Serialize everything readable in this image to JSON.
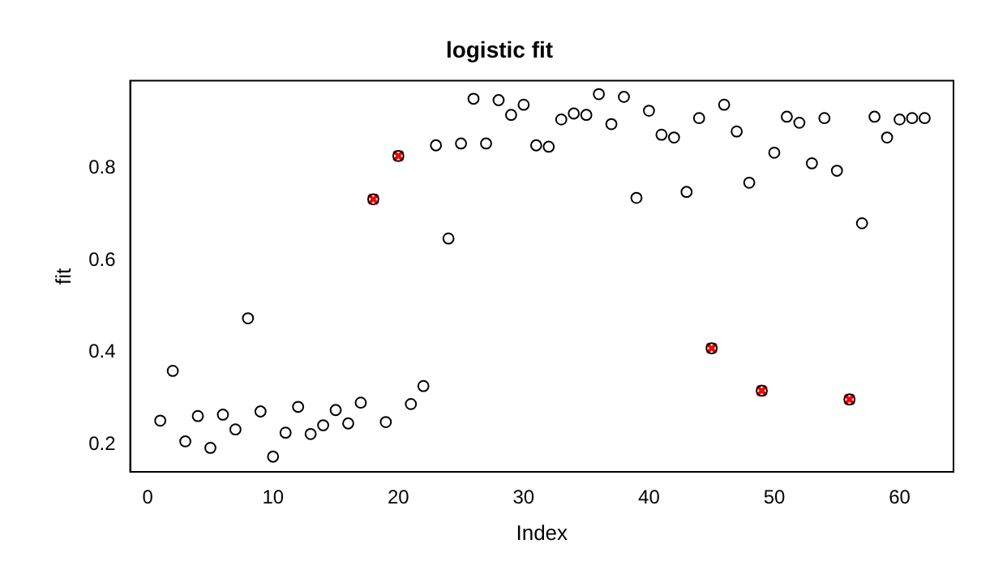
{
  "chart_data": {
    "type": "scatter",
    "title": "logistic fit",
    "xlabel": "Index",
    "ylabel": "fit",
    "xlim": [
      -1.4,
      64.3
    ],
    "xticks": [
      0,
      10,
      20,
      30,
      40,
      50,
      60
    ],
    "ylim": [
      0.141,
      0.989
    ],
    "yticks": [
      0.2,
      0.4,
      0.6,
      0.8
    ],
    "grid": false,
    "legend": false,
    "series": [
      {
        "color": "#000000",
        "marker": "circle",
        "x": [
          1,
          2,
          3,
          4,
          5,
          6,
          7,
          8,
          9,
          10,
          11,
          12,
          13,
          14,
          15,
          16,
          17,
          18,
          19,
          20,
          21,
          22,
          23,
          24,
          25,
          26,
          27,
          28,
          29,
          30,
          31,
          32,
          33,
          34,
          35,
          36,
          37,
          38,
          39,
          40,
          41,
          42,
          43,
          44,
          45,
          46,
          47,
          48,
          49,
          50,
          51,
          52,
          53,
          54,
          55,
          56,
          57,
          58,
          59,
          60,
          61,
          62
        ],
        "values": [
          0.252,
          0.36,
          0.207,
          0.262,
          0.193,
          0.265,
          0.233,
          0.474,
          0.272,
          0.174,
          0.226,
          0.282,
          0.223,
          0.242,
          0.275,
          0.246,
          0.291,
          0.732,
          0.249,
          0.826,
          0.288,
          0.327,
          0.849,
          0.647,
          0.853,
          0.95,
          0.853,
          0.947,
          0.915,
          0.937,
          0.849,
          0.846,
          0.905,
          0.918,
          0.915,
          0.96,
          0.895,
          0.954,
          0.735,
          0.924,
          0.872,
          0.866,
          0.748,
          0.908,
          0.409,
          0.937,
          0.879,
          0.768,
          0.317,
          0.833,
          0.911,
          0.898,
          0.81,
          0.908,
          0.794,
          0.298,
          0.68,
          0.911,
          0.866,
          0.905,
          0.908,
          0.908
        ]
      },
      {
        "color": "#ff0000",
        "marker": "cross",
        "x": [
          18,
          20,
          45,
          49,
          56
        ],
        "values": [
          0.732,
          0.826,
          0.409,
          0.317,
          0.298
        ]
      }
    ]
  }
}
